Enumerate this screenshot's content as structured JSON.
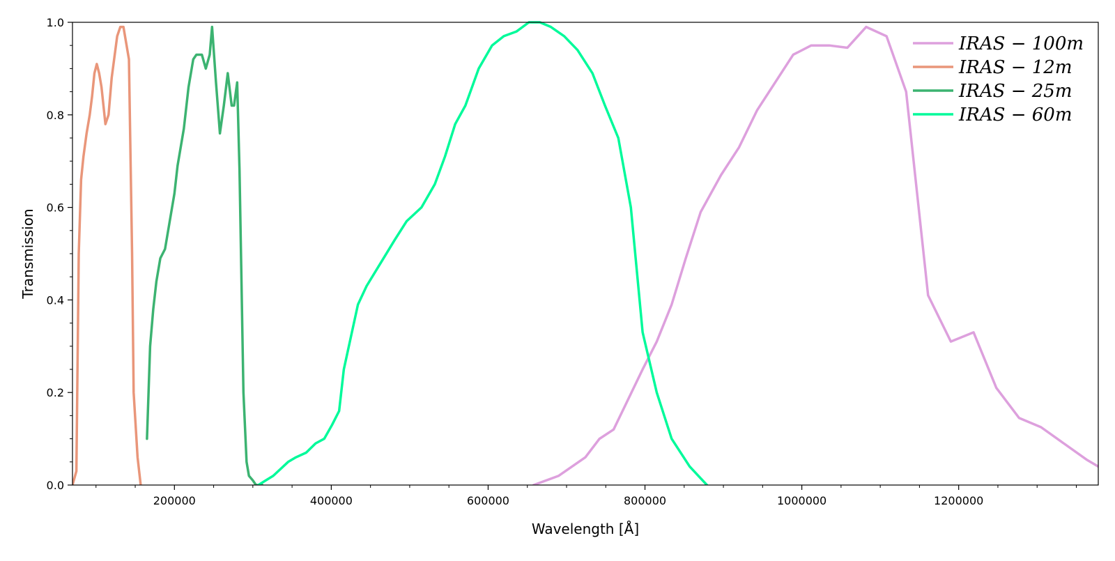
{
  "chart_data": {
    "type": "line",
    "xlabel": "Wavelength [Å]",
    "ylabel": "Transmission",
    "xlim": [
      70000,
      1378000
    ],
    "ylim": [
      0.0,
      1.0
    ],
    "x_ticks": [
      200000,
      400000,
      600000,
      800000,
      1000000,
      1200000
    ],
    "y_ticks": [
      0.0,
      0.2,
      0.4,
      0.6,
      0.8,
      1.0
    ],
    "legend_position": "top-right",
    "grid": false,
    "series": [
      {
        "name": "IRAS − 100m",
        "color": "#dda0dd",
        "x": [
          658000,
          690000,
          724000,
          742000,
          760000,
          797000,
          815000,
          834000,
          852000,
          871000,
          897000,
          920000,
          943000,
          966000,
          989000,
          1012000,
          1035000,
          1058000,
          1082000,
          1108000,
          1133000,
          1161000,
          1190000,
          1219000,
          1248000,
          1277000,
          1305000,
          1334000,
          1363000,
          1378000
        ],
        "y": [
          0.0,
          0.02,
          0.06,
          0.1,
          0.12,
          0.25,
          0.31,
          0.39,
          0.49,
          0.59,
          0.67,
          0.73,
          0.81,
          0.87,
          0.93,
          0.95,
          0.95,
          0.945,
          0.99,
          0.97,
          0.85,
          0.41,
          0.31,
          0.33,
          0.21,
          0.145,
          0.125,
          0.09,
          0.055,
          0.04
        ]
      },
      {
        "name": "IRAS − 12m",
        "color": "#e9967a",
        "x": [
          70000,
          75000,
          78000,
          81000,
          84000,
          88000,
          92000,
          95000,
          98000,
          101000,
          104000,
          107000,
          112000,
          116000,
          120000,
          127000,
          131000,
          135000,
          138000,
          142000,
          146000,
          148000,
          153000,
          157000
        ],
        "y": [
          0.0,
          0.03,
          0.5,
          0.66,
          0.71,
          0.76,
          0.8,
          0.84,
          0.89,
          0.91,
          0.89,
          0.86,
          0.78,
          0.8,
          0.88,
          0.97,
          0.99,
          0.99,
          0.96,
          0.92,
          0.5,
          0.2,
          0.06,
          0.0
        ]
      },
      {
        "name": "IRAS − 25m",
        "color": "#3cb371",
        "x": [
          165000,
          169000,
          173000,
          177000,
          182000,
          188000,
          194000,
          200000,
          204000,
          212000,
          218000,
          224000,
          228000,
          231000,
          235000,
          240000,
          245000,
          248000,
          253000,
          258000,
          263000,
          268000,
          273000,
          276000,
          280000,
          283000,
          288000,
          292000,
          295000,
          300000,
          304000,
          310000,
          312000
        ],
        "y": [
          0.1,
          0.3,
          0.38,
          0.44,
          0.49,
          0.51,
          0.57,
          0.63,
          0.69,
          0.77,
          0.86,
          0.92,
          0.93,
          0.93,
          0.93,
          0.9,
          0.93,
          0.99,
          0.87,
          0.76,
          0.82,
          0.89,
          0.82,
          0.82,
          0.87,
          0.68,
          0.2,
          0.05,
          0.02,
          0.01,
          0.0,
          0.0,
          0.0
        ]
      },
      {
        "name": "IRAS − 60m",
        "color": "#00fa9a",
        "x": [
          307000,
          326000,
          345000,
          355000,
          368000,
          380000,
          391000,
          401000,
          410000,
          416000,
          425000,
          434000,
          445000,
          463000,
          481000,
          496000,
          515000,
          532000,
          545000,
          558000,
          571000,
          588000,
          605000,
          620000,
          636000,
          652000,
          666000,
          680000,
          697000,
          714000,
          733000,
          749000,
          766000,
          782000,
          797000,
          815000,
          834000,
          857000,
          879000
        ],
        "y": [
          0.0,
          0.02,
          0.05,
          0.06,
          0.07,
          0.09,
          0.1,
          0.13,
          0.16,
          0.25,
          0.32,
          0.39,
          0.43,
          0.48,
          0.53,
          0.57,
          0.6,
          0.65,
          0.71,
          0.78,
          0.82,
          0.9,
          0.95,
          0.97,
          0.98,
          1.0,
          1.0,
          0.99,
          0.97,
          0.94,
          0.89,
          0.82,
          0.75,
          0.6,
          0.33,
          0.2,
          0.1,
          0.04,
          0.0
        ]
      }
    ]
  }
}
